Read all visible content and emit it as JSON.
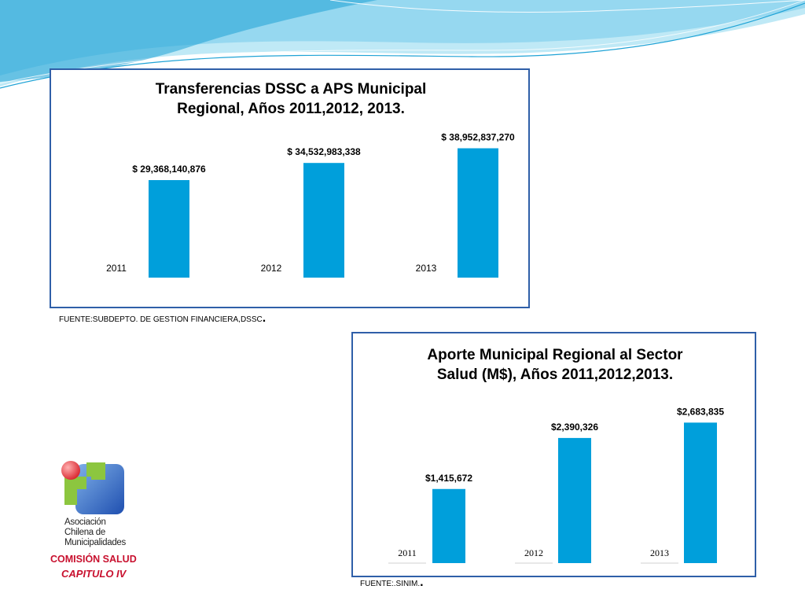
{
  "colors": {
    "bar": "#009fdb",
    "frame": "#2f5fa8",
    "wave_dark": "#1fa3d6",
    "wave_light": "#bfe9f6",
    "brand_red": "#c8102e"
  },
  "chart_data": [
    {
      "type": "bar",
      "title_lines": [
        "Transferencias DSSC a APS Municipal",
        "Regional, Años 2011,2012, 2013."
      ],
      "categories": [
        "2011",
        "2012",
        "2013"
      ],
      "values": [
        29368140876,
        34532983338,
        38952837270
      ],
      "value_labels": [
        "$ 29,368,140,876",
        "$ 34,532,983,338",
        "$ 38,952,837,270"
      ],
      "ylim": [
        0,
        45000000000
      ],
      "grid": false,
      "legend": "none"
    },
    {
      "type": "bar",
      "title_lines": [
        "Aporte Municipal Regional al Sector",
        "Salud (M$), Años 2011,2012,2013."
      ],
      "categories": [
        "2011",
        "2012",
        "2013"
      ],
      "values": [
        1415672,
        2390326,
        2683835
      ],
      "value_labels": [
        "$1,415,672",
        "$2,390,326",
        "$2,683,835"
      ],
      "ylim": [
        0,
        3200000
      ],
      "grid": false,
      "legend": "none"
    }
  ],
  "sources": {
    "source1": "FUENTE:SUBDEPTO. DE GESTION FINANCIERA,DSSC",
    "source2": "FUENTE:.SINIM.",
    "period": "."
  },
  "logo": {
    "lines": [
      "Asociación",
      "Chilena de",
      "Municipalidades"
    ],
    "commission": "COMISIÓN SALUD",
    "chapter": "CAPITULO IV"
  }
}
